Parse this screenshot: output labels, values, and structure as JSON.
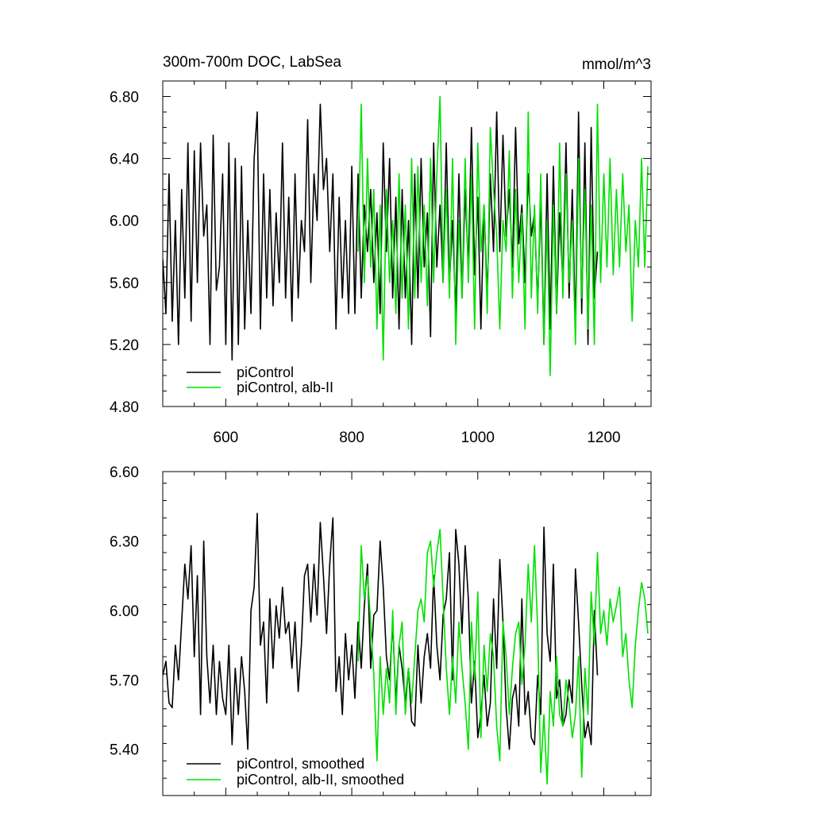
{
  "chart_data": [
    {
      "type": "line",
      "title": "300m-700m DOC, LabSea",
      "units": "mmol/m^3",
      "xlabel": "",
      "ylabel": "",
      "xlim": [
        500,
        1275
      ],
      "ylim": [
        4.8,
        6.9
      ],
      "xticks": [
        600,
        800,
        1000,
        1200
      ],
      "xtick_labels": [
        "600",
        "800",
        "1000",
        "1200"
      ],
      "yticks": [
        4.8,
        5.2,
        5.6,
        6.0,
        6.4,
        6.8
      ],
      "ytick_labels": [
        "4.80",
        "5.20",
        "5.60",
        "6.00",
        "6.40",
        "6.80"
      ],
      "grid": false,
      "legend_position": "bottom-left",
      "series": [
        {
          "name": "piControl",
          "color": "#000000",
          "x": [
            500,
            505,
            510,
            515,
            520,
            525,
            530,
            535,
            540,
            545,
            550,
            555,
            560,
            565,
            570,
            575,
            580,
            585,
            590,
            595,
            600,
            605,
            610,
            615,
            620,
            625,
            630,
            635,
            640,
            645,
            650,
            655,
            660,
            665,
            670,
            675,
            680,
            685,
            690,
            695,
            700,
            705,
            710,
            715,
            720,
            725,
            730,
            735,
            740,
            745,
            750,
            755,
            760,
            765,
            770,
            775,
            780,
            785,
            790,
            795,
            800,
            805,
            810,
            815,
            820,
            825,
            830,
            835,
            840,
            845,
            850,
            855,
            860,
            865,
            870,
            875,
            880,
            885,
            890,
            895,
            900,
            905,
            910,
            915,
            920,
            925,
            930,
            935,
            940,
            945,
            950,
            955,
            960,
            965,
            970,
            975,
            980,
            985,
            990,
            995,
            1000,
            1005,
            1010,
            1015,
            1020,
            1025,
            1030,
            1035,
            1040,
            1045,
            1050,
            1055,
            1060,
            1065,
            1070,
            1075,
            1080,
            1085,
            1090,
            1095,
            1100,
            1105,
            1110,
            1115,
            1120,
            1125,
            1130,
            1135,
            1140,
            1145,
            1150,
            1155,
            1160,
            1165,
            1170,
            1175,
            1180,
            1185,
            1190
          ],
          "values": [
            5.75,
            5.4,
            6.3,
            5.35,
            6.0,
            5.2,
            6.2,
            5.5,
            6.5,
            5.35,
            6.45,
            5.6,
            6.5,
            5.9,
            6.1,
            5.2,
            6.55,
            5.55,
            5.7,
            6.3,
            5.2,
            6.5,
            5.1,
            6.4,
            5.2,
            6.35,
            5.3,
            6.0,
            5.4,
            6.4,
            6.7,
            5.3,
            6.3,
            5.5,
            6.2,
            5.45,
            6.05,
            5.6,
            6.5,
            5.5,
            6.15,
            5.35,
            6.3,
            5.5,
            6.0,
            5.8,
            6.65,
            5.6,
            6.3,
            6.0,
            6.75,
            6.2,
            6.4,
            5.8,
            6.3,
            5.3,
            6.15,
            5.5,
            6.0,
            5.4,
            6.35,
            5.4,
            6.3,
            5.5,
            6.1,
            5.8,
            6.2,
            5.6,
            6.05,
            5.4,
            6.5,
            5.8,
            6.4,
            5.5,
            6.15,
            5.3,
            6.2,
            5.5,
            6.0,
            5.2,
            6.3,
            5.5,
            6.4,
            5.7,
            6.05,
            5.25,
            6.5,
            5.7,
            6.1,
            5.6,
            6.5,
            5.6,
            6.0,
            5.4,
            6.3,
            5.5,
            6.2,
            5.7,
            6.6,
            5.65,
            6.15,
            5.3,
            6.1,
            5.5,
            6.3,
            5.8,
            6.7,
            5.8,
            6.55,
            5.9,
            6.2,
            5.7,
            6.6,
            5.85,
            6.1,
            5.6,
            6.3,
            5.9,
            6.05,
            5.45,
            6.15,
            5.2,
            6.3,
            5.3,
            6.35,
            5.4,
            6.05,
            5.6,
            6.5,
            5.5,
            6.2,
            5.3,
            6.7,
            5.4,
            6.5,
            5.2,
            6.6,
            5.5,
            5.8
          ]
        },
        {
          "name": "piControl, alb-II",
          "color": "#00e000",
          "x": [
            810,
            815,
            820,
            825,
            830,
            835,
            840,
            845,
            850,
            855,
            860,
            865,
            870,
            875,
            880,
            885,
            890,
            895,
            900,
            905,
            910,
            915,
            920,
            925,
            930,
            935,
            940,
            945,
            950,
            955,
            960,
            965,
            970,
            975,
            980,
            985,
            990,
            995,
            1000,
            1005,
            1010,
            1015,
            1020,
            1025,
            1030,
            1035,
            1040,
            1045,
            1050,
            1055,
            1060,
            1065,
            1070,
            1075,
            1080,
            1085,
            1090,
            1095,
            1100,
            1105,
            1110,
            1115,
            1120,
            1125,
            1130,
            1135,
            1140,
            1145,
            1150,
            1155,
            1160,
            1165,
            1170,
            1175,
            1180,
            1185,
            1190,
            1195,
            1200,
            1205,
            1210,
            1215,
            1220,
            1225,
            1230,
            1235,
            1240,
            1245,
            1250,
            1255,
            1260,
            1265,
            1270
          ],
          "values": [
            5.8,
            6.75,
            5.6,
            6.4,
            5.7,
            6.2,
            5.3,
            6.1,
            5.1,
            6.2,
            5.6,
            6.0,
            5.4,
            6.3,
            5.5,
            6.1,
            5.3,
            6.4,
            5.5,
            6.35,
            5.6,
            6.1,
            5.45,
            6.4,
            5.6,
            6.3,
            6.8,
            5.6,
            6.2,
            5.5,
            6.4,
            5.2,
            6.0,
            5.5,
            6.4,
            5.6,
            6.3,
            5.3,
            6.5,
            5.8,
            6.1,
            5.4,
            6.6,
            6.2,
            5.9,
            5.3,
            6.0,
            5.8,
            6.45,
            5.5,
            6.2,
            5.6,
            6.05,
            5.3,
            6.7,
            5.5,
            6.1,
            5.4,
            6.3,
            5.2,
            6.0,
            5.0,
            6.1,
            5.4,
            6.5,
            5.5,
            6.3,
            5.6,
            6.0,
            5.2,
            6.4,
            5.5,
            6.2,
            5.3,
            6.1,
            5.2,
            6.75,
            5.6,
            6.3,
            5.7,
            6.4,
            5.65,
            6.2,
            5.7,
            6.3,
            5.8,
            6.1,
            5.35,
            6.0,
            5.7,
            6.4,
            5.7,
            6.35
          ]
        }
      ]
    },
    {
      "type": "line",
      "title": "",
      "xlabel": "",
      "ylabel": "",
      "xlim": [
        500,
        1275
      ],
      "ylim": [
        5.2,
        6.6
      ],
      "xticks": [
        600,
        800,
        1000,
        1200
      ],
      "yticks": [
        5.4,
        5.7,
        6.0,
        6.3,
        6.6
      ],
      "ytick_labels": [
        "5.40",
        "5.70",
        "6.00",
        "6.30",
        "6.60"
      ],
      "grid": false,
      "legend_position": "bottom-left",
      "series": [
        {
          "name": "piControl, smoothed",
          "color": "#000000",
          "x": [
            500,
            505,
            510,
            515,
            520,
            525,
            530,
            535,
            540,
            545,
            550,
            555,
            560,
            565,
            570,
            575,
            580,
            585,
            590,
            595,
            600,
            605,
            610,
            615,
            620,
            625,
            630,
            635,
            640,
            645,
            650,
            655,
            660,
            665,
            670,
            675,
            680,
            685,
            690,
            695,
            700,
            705,
            710,
            715,
            720,
            725,
            730,
            735,
            740,
            745,
            750,
            755,
            760,
            765,
            770,
            775,
            780,
            785,
            790,
            795,
            800,
            805,
            810,
            815,
            820,
            825,
            830,
            835,
            840,
            845,
            850,
            855,
            860,
            865,
            870,
            875,
            880,
            885,
            890,
            895,
            900,
            905,
            910,
            915,
            920,
            925,
            930,
            935,
            940,
            945,
            950,
            955,
            960,
            965,
            970,
            975,
            980,
            985,
            990,
            995,
            1000,
            1005,
            1010,
            1015,
            1020,
            1025,
            1030,
            1035,
            1040,
            1045,
            1050,
            1055,
            1060,
            1065,
            1070,
            1075,
            1080,
            1085,
            1090,
            1095,
            1100,
            1105,
            1110,
            1115,
            1120,
            1125,
            1130,
            1135,
            1140,
            1145,
            1150,
            1155,
            1160,
            1165,
            1170,
            1175,
            1180,
            1185,
            1190
          ],
          "values": [
            5.72,
            5.78,
            5.6,
            5.58,
            5.85,
            5.7,
            5.95,
            6.2,
            6.05,
            6.28,
            5.8,
            6.15,
            5.55,
            6.3,
            5.8,
            5.6,
            5.85,
            5.55,
            5.78,
            5.62,
            5.55,
            5.85,
            5.42,
            5.75,
            5.55,
            5.8,
            5.65,
            5.4,
            6.0,
            6.1,
            6.42,
            5.85,
            5.95,
            5.6,
            6.05,
            5.75,
            6.02,
            5.88,
            6.1,
            5.9,
            5.95,
            5.75,
            5.95,
            5.65,
            5.85,
            6.15,
            6.2,
            5.95,
            6.2,
            5.98,
            6.38,
            6.15,
            5.9,
            6.2,
            6.4,
            5.65,
            5.8,
            5.55,
            5.9,
            5.7,
            5.85,
            5.62,
            5.95,
            5.75,
            6.02,
            6.2,
            5.75,
            5.98,
            6.0,
            6.3,
            6.1,
            5.8,
            5.7,
            5.95,
            5.6,
            5.85,
            5.75,
            5.6,
            5.75,
            5.52,
            5.5,
            5.85,
            5.6,
            5.8,
            5.9,
            5.75,
            6.15,
            5.85,
            5.7,
            5.98,
            6.05,
            6.25,
            5.7,
            6.35,
            6.2,
            5.9,
            6.28,
            6.05,
            5.6,
            5.78,
            5.45,
            5.55,
            5.72,
            5.5,
            5.6,
            6.05,
            5.75,
            6.22,
            5.95,
            5.58,
            5.4,
            5.62,
            5.68,
            5.5,
            6.05,
            5.55,
            5.65,
            5.45,
            5.42,
            5.72,
            5.55,
            6.36,
            5.9,
            5.78,
            6.2,
            5.62,
            5.7,
            5.5,
            5.55,
            5.7,
            5.6,
            6.18,
            5.95,
            5.68,
            5.45,
            5.52,
            5.42,
            6.0,
            5.72
          ]
        },
        {
          "name": "piControl, alb-II, smoothed",
          "color": "#00e000",
          "x": [
            810,
            815,
            820,
            825,
            830,
            835,
            840,
            845,
            850,
            855,
            860,
            865,
            870,
            875,
            880,
            885,
            890,
            895,
            900,
            905,
            910,
            915,
            920,
            925,
            930,
            935,
            940,
            945,
            950,
            955,
            960,
            965,
            970,
            975,
            980,
            985,
            990,
            995,
            1000,
            1005,
            1010,
            1015,
            1020,
            1025,
            1030,
            1035,
            1040,
            1045,
            1050,
            1055,
            1060,
            1065,
            1070,
            1075,
            1080,
            1085,
            1090,
            1095,
            1100,
            1105,
            1110,
            1115,
            1120,
            1125,
            1130,
            1135,
            1140,
            1145,
            1150,
            1155,
            1160,
            1165,
            1170,
            1175,
            1180,
            1185,
            1190,
            1195,
            1200,
            1205,
            1210,
            1215,
            1220,
            1225,
            1230,
            1235,
            1240,
            1245,
            1250,
            1255,
            1260,
            1265,
            1270
          ],
          "values": [
            5.78,
            6.28,
            6.05,
            6.15,
            5.95,
            5.72,
            5.35,
            5.8,
            5.55,
            5.75,
            5.6,
            6.0,
            5.55,
            5.85,
            5.95,
            5.55,
            5.75,
            5.6,
            5.8,
            6.0,
            6.05,
            5.95,
            6.25,
            6.3,
            6.1,
            6.25,
            6.35,
            6.05,
            5.75,
            5.55,
            5.8,
            5.6,
            5.95,
            5.75,
            5.6,
            5.4,
            5.95,
            5.7,
            6.08,
            5.45,
            5.85,
            5.65,
            5.9,
            5.8,
            5.5,
            5.35,
            5.95,
            5.8,
            5.55,
            5.75,
            5.9,
            5.95,
            5.68,
            5.85,
            6.2,
            5.95,
            6.28,
            5.92,
            5.3,
            5.55,
            5.25,
            5.65,
            5.5,
            5.8,
            5.55,
            5.5,
            5.7,
            5.6,
            5.45,
            5.55,
            5.8,
            5.28,
            5.75,
            5.55,
            6.08,
            5.85,
            6.25,
            5.9,
            6.0,
            5.85,
            6.05,
            5.95,
            6.02,
            6.1,
            5.8,
            5.9,
            5.7,
            5.58,
            5.85,
            6.0,
            6.12,
            6.05,
            5.9
          ]
        }
      ]
    }
  ]
}
